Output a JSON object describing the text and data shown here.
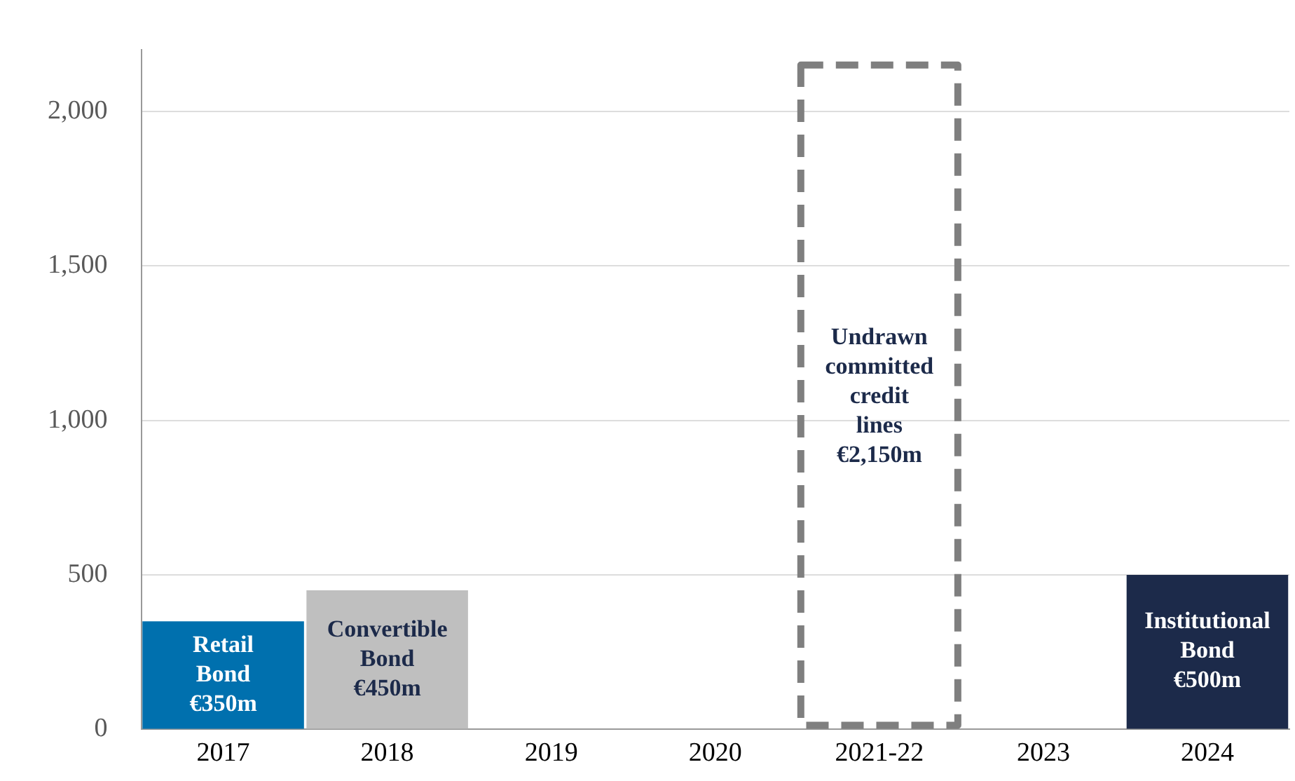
{
  "chart_data": {
    "type": "bar",
    "categories": [
      "2017",
      "2018",
      "2019",
      "2020",
      "2021-22",
      "2023",
      "2024"
    ],
    "series": [
      {
        "colors": [
          "#0070ae",
          "#bfbfbf",
          null,
          null,
          null,
          null,
          "#1c2a4a"
        ],
        "values": [
          350,
          450,
          null,
          null,
          null,
          null,
          500
        ],
        "value_labels": [
          "Retail Bond €350m",
          "Convertible Bond €450m",
          null,
          null,
          null,
          null,
          "Institutional Bond €500m"
        ]
      },
      {
        "color": "#7f7f7f",
        "line_style": "dashed",
        "values": [
          null,
          null,
          null,
          null,
          2150,
          null,
          null
        ],
        "value_labels": [
          null,
          null,
          null,
          null,
          "Undrawn committed credit lines €2,150m",
          null,
          null
        ]
      }
    ],
    "ylim": [
      0,
      2200
    ],
    "yticks": [
      {
        "value": 0,
        "label": "0"
      },
      {
        "value": 500,
        "label": "500"
      },
      {
        "value": 1000,
        "label": "1,000"
      },
      {
        "value": 1500,
        "label": "1,500"
      },
      {
        "value": 2000,
        "label": "2,000"
      }
    ],
    "grid": "y",
    "legend": false
  }
}
